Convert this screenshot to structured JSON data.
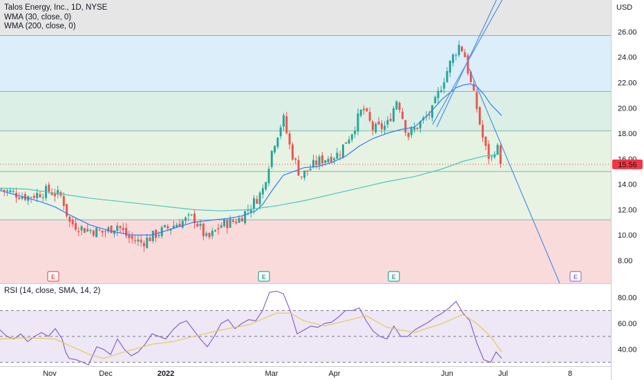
{
  "header": {
    "title": "Talos Energy, Inc., 1D, NYSE",
    "study1": "WMA (30, close, 0)",
    "study2": "WMA (200, close, 0)",
    "rsi_label": "RSI (14, close, SMA, 14, 2)",
    "currency": "USD"
  },
  "price_tag": {
    "value": "15.56",
    "color": "#f23645"
  },
  "colors": {
    "up": "#26a69a",
    "down": "#ef5350",
    "wma30": "#3179f5",
    "wma200": "#4fc3c0",
    "trend": "#4a90e2",
    "rsi": "#7e57c2",
    "rsi_ma": "#e6c84a",
    "earn_up": "#26a69a",
    "earn_down": "#ef5350",
    "earn_future": "#9575cd"
  },
  "chart_data": [
    {
      "type": "candlestick",
      "title": "Talos Energy, Inc., 1D, NYSE",
      "ylabel": "USD",
      "ylim": [
        6.2,
        28.5
      ],
      "y_ticks": [
        "26.00",
        "24.00",
        "22.00",
        "20.00",
        "18.00",
        "16.00",
        "14.00",
        "12.00",
        "10.00",
        "8.00"
      ],
      "x_ticks": [
        "Nov",
        "Dec",
        "2022",
        "Mar",
        "Apr",
        "Jun",
        "Jul",
        "8"
      ],
      "last_price": 15.56,
      "zones": [
        {
          "from": 25.7,
          "to": 28.5,
          "color": "#e6e6e6"
        },
        {
          "from": 21.3,
          "to": 25.7,
          "color": "#ddeefb"
        },
        {
          "from": 18.2,
          "to": 21.3,
          "color": "#dbefe6"
        },
        {
          "from": 15.0,
          "to": 18.2,
          "color": "#e6f3e2"
        },
        {
          "from": 11.2,
          "to": 15.0,
          "color": "#e8f3e4"
        },
        {
          "from": 6.2,
          "to": 11.2,
          "color": "#fadbdc"
        }
      ],
      "levels": [
        25.7,
        21.3,
        18.2,
        15.0,
        11.2
      ],
      "series": [
        {
          "name": "WMA (30, close, 0)",
          "points": [
            [
              0,
              13.5
            ],
            [
              20,
              13.2
            ],
            [
              40,
              12.9
            ],
            [
              60,
              12.6
            ],
            [
              80,
              12.2
            ],
            [
              100,
              11.6
            ],
            [
              130,
              10.8
            ],
            [
              160,
              10.3
            ],
            [
              190,
              10.0
            ],
            [
              220,
              10.0
            ],
            [
              250,
              10.5
            ],
            [
              280,
              11.0
            ],
            [
              310,
              11.2
            ],
            [
              330,
              11.3
            ],
            [
              350,
              11.5
            ],
            [
              370,
              11.9
            ],
            [
              380,
              12.4
            ],
            [
              395,
              13.6
            ],
            [
              410,
              14.7
            ],
            [
              425,
              15.0
            ],
            [
              440,
              15.3
            ],
            [
              460,
              15.4
            ],
            [
              480,
              15.7
            ],
            [
              500,
              16.2
            ],
            [
              520,
              17.0
            ],
            [
              540,
              17.6
            ],
            [
              560,
              18.0
            ],
            [
              580,
              18.3
            ],
            [
              600,
              18.5
            ],
            [
              620,
              19.5
            ],
            [
              640,
              20.7
            ],
            [
              660,
              21.6
            ],
            [
              670,
              21.8
            ],
            [
              680,
              21.9
            ],
            [
              690,
              21.7
            ],
            [
              700,
              21.1
            ],
            [
              710,
              20.3
            ],
            [
              726,
              19.4
            ]
          ]
        },
        {
          "name": "WMA (200, close, 0)",
          "points": [
            [
              0,
              13.7
            ],
            [
              40,
              13.6
            ],
            [
              80,
              13.3
            ],
            [
              130,
              12.9
            ],
            [
              180,
              12.6
            ],
            [
              230,
              12.3
            ],
            [
              280,
              12.0
            ],
            [
              320,
              11.9
            ],
            [
              360,
              12.0
            ],
            [
              400,
              12.3
            ],
            [
              440,
              12.7
            ],
            [
              480,
              13.2
            ],
            [
              520,
              13.7
            ],
            [
              560,
              14.2
            ],
            [
              600,
              14.6
            ],
            [
              640,
              15.2
            ],
            [
              670,
              15.8
            ],
            [
              700,
              16.2
            ],
            [
              726,
              16.4
            ]
          ]
        }
      ],
      "trendlines": [
        {
          "from": [
            626,
            18.7
          ],
          "to": [
            740,
            29.8
          ]
        },
        {
          "from": [
            632,
            18.5
          ],
          "to": [
            740,
            31.0
          ]
        },
        {
          "from": [
            679,
            23.1
          ],
          "to": [
            810,
            6.2
          ]
        }
      ],
      "earnings": [
        {
          "x": 77,
          "label": "E",
          "style": "down"
        },
        {
          "x": 382,
          "label": "E",
          "style": "up"
        },
        {
          "x": 570,
          "label": "E",
          "style": "up"
        },
        {
          "x": 833,
          "label": "E",
          "style": "future"
        }
      ]
    },
    {
      "type": "line",
      "title": "RSI (14, close, SMA, 14, 2)",
      "ylim": [
        27,
        90
      ],
      "y_ticks": [
        "80.00",
        "60.00",
        "40.00"
      ],
      "bands": [
        70,
        50,
        30
      ],
      "series": [
        {
          "name": "RSI",
          "points": [
            [
              0,
              55
            ],
            [
              10,
              50
            ],
            [
              20,
              48
            ],
            [
              30,
              52
            ],
            [
              40,
              46
            ],
            [
              50,
              50
            ],
            [
              60,
              53
            ],
            [
              70,
              50
            ],
            [
              80,
              56
            ],
            [
              90,
              48
            ],
            [
              95,
              38
            ],
            [
              100,
              33
            ],
            [
              110,
              32
            ],
            [
              120,
              30
            ],
            [
              128,
              28
            ],
            [
              140,
              42
            ],
            [
              150,
              40
            ],
            [
              160,
              36
            ],
            [
              170,
              48
            ],
            [
              180,
              40
            ],
            [
              190,
              35
            ],
            [
              200,
              38
            ],
            [
              210,
              44
            ],
            [
              220,
              52
            ],
            [
              230,
              50
            ],
            [
              240,
              48
            ],
            [
              250,
              55
            ],
            [
              260,
              60
            ],
            [
              270,
              62
            ],
            [
              280,
              55
            ],
            [
              290,
              48
            ],
            [
              300,
              42
            ],
            [
              310,
              50
            ],
            [
              320,
              60
            ],
            [
              330,
              63
            ],
            [
              340,
              56
            ],
            [
              350,
              60
            ],
            [
              360,
              63
            ],
            [
              370,
              62
            ],
            [
              380,
              70
            ],
            [
              390,
              84
            ],
            [
              400,
              85
            ],
            [
              410,
              83
            ],
            [
              420,
              70
            ],
            [
              430,
              52
            ],
            [
              440,
              55
            ],
            [
              450,
              58
            ],
            [
              460,
              57
            ],
            [
              470,
              60
            ],
            [
              480,
              61
            ],
            [
              490,
              65
            ],
            [
              500,
              70
            ],
            [
              510,
              70
            ],
            [
              520,
              72
            ],
            [
              530,
              62
            ],
            [
              540,
              54
            ],
            [
              550,
              50
            ],
            [
              560,
              48
            ],
            [
              570,
              58
            ],
            [
              580,
              50
            ],
            [
              590,
              50
            ],
            [
              600,
              55
            ],
            [
              610,
              58
            ],
            [
              620,
              61
            ],
            [
              630,
              65
            ],
            [
              640,
              68
            ],
            [
              650,
              72
            ],
            [
              660,
              77
            ],
            [
              670,
              68
            ],
            [
              680,
              62
            ],
            [
              690,
              45
            ],
            [
              700,
              32
            ],
            [
              710,
              30
            ],
            [
              718,
              38
            ],
            [
              726,
              33
            ]
          ]
        },
        {
          "name": "RSI-based MA",
          "points": [
            [
              0,
              48
            ],
            [
              40,
              49
            ],
            [
              80,
              48
            ],
            [
              100,
              43
            ],
            [
              130,
              36
            ],
            [
              150,
              33
            ],
            [
              180,
              38
            ],
            [
              220,
              44
            ],
            [
              250,
              46
            ],
            [
              280,
              50
            ],
            [
              320,
              55
            ],
            [
              360,
              59
            ],
            [
              400,
              68
            ],
            [
              420,
              68
            ],
            [
              440,
              62
            ],
            [
              470,
              58
            ],
            [
              500,
              62
            ],
            [
              530,
              66
            ],
            [
              560,
              57
            ],
            [
              600,
              53
            ],
            [
              640,
              60
            ],
            [
              670,
              67
            ],
            [
              690,
              60
            ],
            [
              710,
              50
            ],
            [
              726,
              38
            ]
          ]
        }
      ]
    }
  ]
}
